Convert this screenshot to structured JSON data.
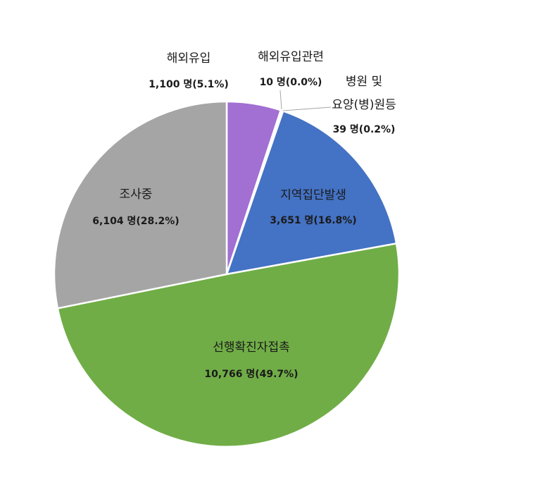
{
  "chart_data": {
    "type": "pie",
    "title": "",
    "series": [
      {
        "slices": [
          {
            "name": "해외유입",
            "value": 1100,
            "value_text": "1,100 명(5.1%)",
            "color": "#a26fd3"
          },
          {
            "name": "해외유입관련",
            "value": 10,
            "value_text": "10 명(0.0%)",
            "color": "#6a4fa0"
          },
          {
            "name": "병원 및 요양(병)원등",
            "value": 39,
            "value_text": "39 명(0.2%)",
            "color": "#e0d0ec"
          },
          {
            "name": "지역집단발생",
            "value": 3651,
            "value_text": "3,651 명(16.8%)",
            "color": "#4472c4"
          },
          {
            "name": "선행확진자접촉",
            "value": 10766,
            "value_text": "10,766 명(49.7%)",
            "color": "#70ad47"
          },
          {
            "name": "조사중",
            "value": 6104,
            "value_text": "6,104 명(28.2%)",
            "color": "#a5a5a5"
          }
        ]
      }
    ],
    "label_lines": {
      "병원 및 요양(병)원등": [
        "병원 및",
        "요양(병)원등"
      ]
    }
  }
}
